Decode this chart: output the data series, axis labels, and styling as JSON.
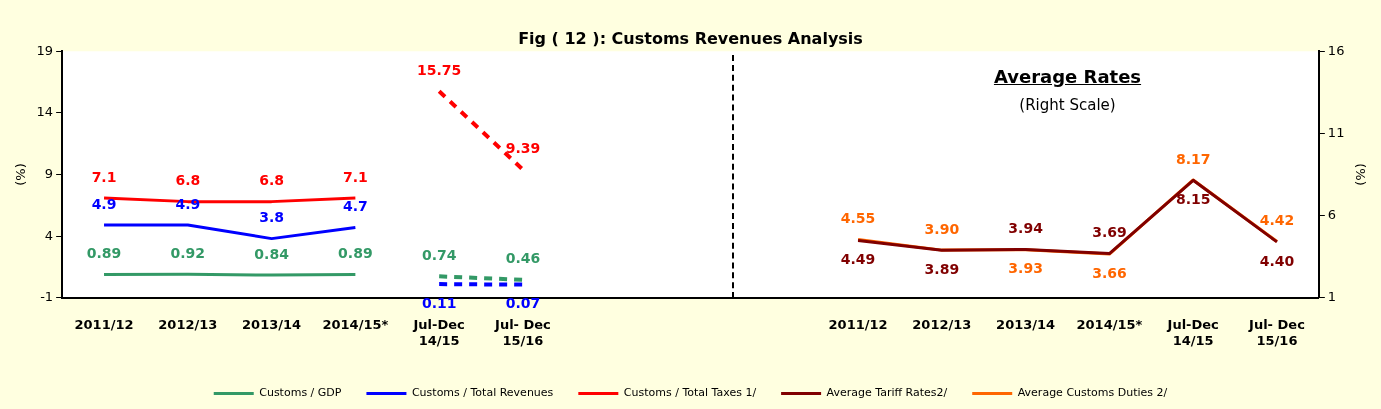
{
  "chart_data": {
    "type": "line",
    "title": "Fig ( 12 ): Customs Revenues Analysis",
    "ylabel": "(%)",
    "y2label": "(%)",
    "categories": [
      "2011/12",
      "2012/13",
      "2013/14",
      "2014/15*",
      "Jul-Dec\n14/15",
      "Jul- Dec\n15/16",
      null,
      null,
      null,
      "2011/12",
      "2012/13",
      "2013/14",
      "2014/15*",
      "Jul-Dec\n14/15",
      "Jul- Dec\n15/16"
    ],
    "series": [
      {
        "name": "Customs / GDP",
        "color": "#339966",
        "values": [
          0.89,
          0.92,
          0.84,
          0.89,
          null,
          null,
          null,
          null,
          null,
          null,
          null,
          null,
          null,
          null,
          null
        ]
      },
      {
        "name": "Customs / Total Revenues",
        "color": "#0000ff",
        "values": [
          4.9,
          4.9,
          3.8,
          4.7,
          null,
          null,
          null,
          null,
          null,
          null,
          null,
          null,
          null,
          null,
          null
        ]
      },
      {
        "name": "Customs / Total Taxes 1/",
        "color": "#ff0000",
        "values": [
          7.1,
          6.8,
          6.8,
          7.1,
          null,
          null,
          null,
          null,
          null,
          null,
          null,
          null,
          null,
          null,
          null
        ]
      },
      {
        "color": "#339966",
        "line_style": "dashed",
        "values": [
          null,
          null,
          null,
          null,
          0.74,
          0.46,
          null,
          null,
          null,
          null,
          null,
          null,
          null,
          null,
          null
        ]
      },
      {
        "color": "#0000ff",
        "line_style": "dashed",
        "values": [
          null,
          null,
          null,
          null,
          0.11,
          0.07,
          null,
          null,
          null,
          null,
          null,
          null,
          null,
          null,
          null
        ]
      },
      {
        "color": "#ff0000",
        "line_style": "dashed",
        "values": [
          null,
          null,
          null,
          null,
          15.75,
          9.39,
          null,
          null,
          null,
          null,
          null,
          null,
          null,
          null,
          null
        ]
      },
      {
        "name": "Average Tariff Rates2/",
        "color": "#800000",
        "axis": "y2",
        "values": [
          null,
          null,
          null,
          null,
          null,
          null,
          null,
          null,
          null,
          4.49,
          3.89,
          3.94,
          3.69,
          8.15,
          4.4
        ],
        "value_labels": [
          null,
          null,
          null,
          null,
          null,
          null,
          null,
          null,
          null,
          "4.49",
          "3.89",
          "3.94",
          "3.69",
          "8.15",
          "4.40"
        ]
      },
      {
        "name": "Average Customs Duties 2/",
        "color": "#ff6600",
        "axis": "y2",
        "values": [
          null,
          null,
          null,
          null,
          null,
          null,
          null,
          null,
          null,
          4.55,
          3.9,
          3.93,
          3.66,
          8.17,
          4.42
        ],
        "value_labels": [
          null,
          null,
          null,
          null,
          null,
          null,
          null,
          null,
          null,
          "4.55",
          "3.90",
          "3.93",
          "3.66",
          "8.17",
          "4.42"
        ]
      }
    ],
    "ylim": [
      -1,
      19
    ],
    "yticks": [
      -1,
      4,
      9,
      14,
      19
    ],
    "y2lim": [
      1,
      16
    ],
    "y2ticks": [
      1,
      6,
      11,
      16
    ],
    "annotations": [
      "Average Rates",
      "(Right Scale)"
    ],
    "data_labels": true,
    "grid": false,
    "legend": "bottom",
    "marker": "none",
    "line_style": "solid"
  }
}
